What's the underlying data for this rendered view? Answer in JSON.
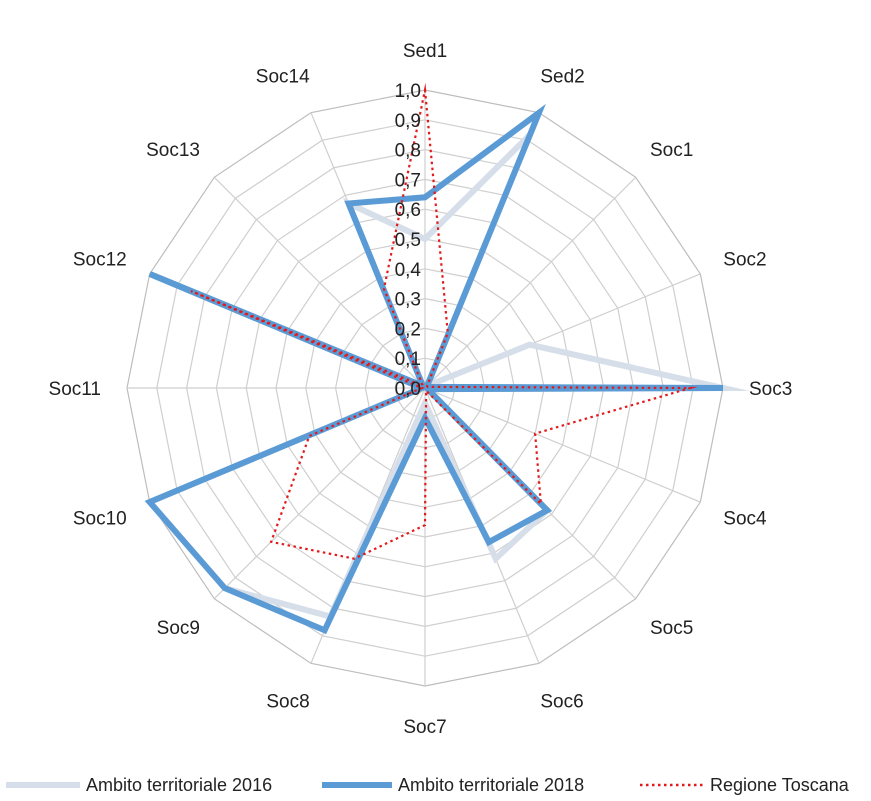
{
  "chart_data": {
    "type": "radar",
    "categories": [
      "Sed1",
      "Sed2",
      "Soc1",
      "Soc2",
      "Soc3",
      "Soc4",
      "Soc5",
      "Soc6",
      "Soc7",
      "Soc8",
      "Soc9",
      "Soc10",
      "Soc11",
      "Soc12",
      "Soc13",
      "Soc14"
    ],
    "ylim": [
      0,
      1.0
    ],
    "ticks": [
      "0,0",
      "0,1",
      "0,2",
      "0,3",
      "0,4",
      "0,5",
      "0,6",
      "0,7",
      "0,8",
      "0,9",
      "1,0"
    ],
    "grid": true,
    "legend_position": "bottom",
    "series": [
      {
        "name": "Ambito territoriale 2016",
        "color": "#d6dee9",
        "style": "solid",
        "values": [
          0.5,
          0.92,
          0.01,
          0.38,
          1.0,
          0.01,
          0.58,
          0.62,
          0.05,
          0.83,
          0.95,
          1.0,
          0.01,
          1.0,
          0.01,
          0.67
        ]
      },
      {
        "name": "Ambito territoriale 2018",
        "color": "#5b9bd5",
        "style": "solid",
        "values": [
          0.64,
          1.0,
          0.01,
          0.01,
          1.0,
          0.01,
          0.58,
          0.56,
          0.1,
          0.88,
          0.95,
          1.0,
          0.01,
          1.0,
          0.01,
          0.67
        ]
      },
      {
        "name": "Regione Toscana",
        "color": "#e31a1c",
        "style": "dotted",
        "values": [
          1.0,
          0.2,
          0.01,
          0.01,
          0.89,
          0.4,
          0.55,
          0.01,
          0.46,
          0.62,
          0.73,
          0.42,
          0.01,
          0.85,
          0.01,
          0.36
        ]
      }
    ]
  }
}
